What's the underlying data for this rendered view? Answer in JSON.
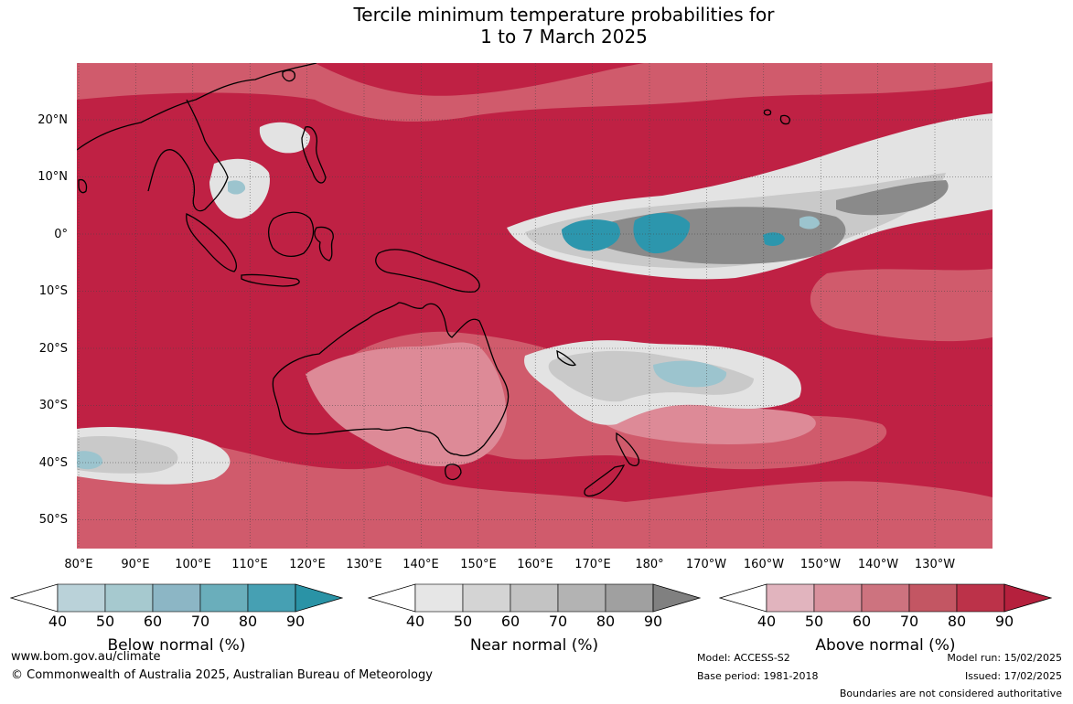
{
  "title_line1": "Tercile minimum temperature probabilities for",
  "title_line2": "1 to 7 March 2025",
  "lat_labels": [
    "20°N",
    "10°N",
    "0°",
    "10°S",
    "20°S",
    "30°S",
    "40°S",
    "50°S"
  ],
  "lon_labels": [
    "80°E",
    "90°E",
    "100°E",
    "110°E",
    "120°E",
    "130°E",
    "140°E",
    "150°E",
    "160°E",
    "170°E",
    "180°",
    "170°W",
    "160°W",
    "150°W",
    "140°W",
    "130°W"
  ],
  "colorbars": [
    {
      "title": "Below normal (%)",
      "ticks": [
        "40",
        "50",
        "60",
        "70",
        "80",
        "90"
      ],
      "colors": [
        "#ffffff",
        "#bad2d9",
        "#a6c9cf",
        "#8cb6c5",
        "#6aaebb",
        "#46a0b3",
        "#2a93a6"
      ]
    },
    {
      "title": "Near normal (%)",
      "ticks": [
        "40",
        "50",
        "60",
        "70",
        "80",
        "90"
      ],
      "colors": [
        "#ffffff",
        "#e6e6e6",
        "#d4d4d4",
        "#c3c3c3",
        "#b3b3b3",
        "#a0a0a0",
        "#808080"
      ]
    },
    {
      "title": "Above normal (%)",
      "ticks": [
        "40",
        "50",
        "60",
        "70",
        "80",
        "90"
      ],
      "colors": [
        "#ffffff",
        "#e1b4be",
        "#d8919d",
        "#cd737f",
        "#c35663",
        "#bc3249",
        "#b5203d"
      ]
    }
  ],
  "map_colors": {
    "ocean_above": "#bf2144",
    "above_mid": "#d05b6c",
    "above_low": "#dd8a97",
    "near_low": "#e3e3e3",
    "near_mid": "#c9c9c9",
    "near_high": "#8a8a8a",
    "below_high": "#2c96ad",
    "below_low": "#9cc4ce",
    "coast": "#000000",
    "grid": "#444444"
  },
  "footer": {
    "url": "www.bom.gov.au/climate",
    "copyright": "© Commonwealth of Australia 2025, Australian Bureau of Meteorology",
    "model": "Model: ACCESS-S2",
    "base_period": "Base period: 1981-2018",
    "model_run": "Model run: 15/02/2025",
    "issued": "Issued: 17/02/2025",
    "disclaimer": "Boundaries are not considered authoritative"
  }
}
